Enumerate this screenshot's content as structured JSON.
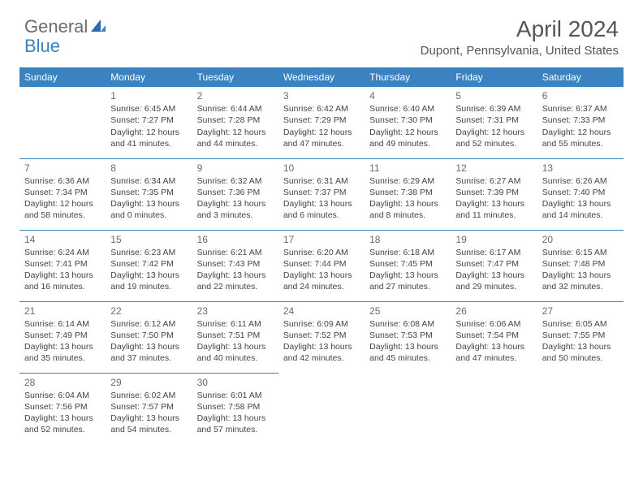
{
  "logo": {
    "general": "General",
    "blue": "Blue"
  },
  "title": "April 2024",
  "location": "Dupont, Pennsylvania, United States",
  "header_bg": "#3b83c0",
  "days_of_week": [
    "Sunday",
    "Monday",
    "Tuesday",
    "Wednesday",
    "Thursday",
    "Friday",
    "Saturday"
  ],
  "weeks": [
    [
      null,
      {
        "n": "1",
        "sr": "Sunrise: 6:45 AM",
        "ss": "Sunset: 7:27 PM",
        "d1": "Daylight: 12 hours",
        "d2": "and 41 minutes."
      },
      {
        "n": "2",
        "sr": "Sunrise: 6:44 AM",
        "ss": "Sunset: 7:28 PM",
        "d1": "Daylight: 12 hours",
        "d2": "and 44 minutes."
      },
      {
        "n": "3",
        "sr": "Sunrise: 6:42 AM",
        "ss": "Sunset: 7:29 PM",
        "d1": "Daylight: 12 hours",
        "d2": "and 47 minutes."
      },
      {
        "n": "4",
        "sr": "Sunrise: 6:40 AM",
        "ss": "Sunset: 7:30 PM",
        "d1": "Daylight: 12 hours",
        "d2": "and 49 minutes."
      },
      {
        "n": "5",
        "sr": "Sunrise: 6:39 AM",
        "ss": "Sunset: 7:31 PM",
        "d1": "Daylight: 12 hours",
        "d2": "and 52 minutes."
      },
      {
        "n": "6",
        "sr": "Sunrise: 6:37 AM",
        "ss": "Sunset: 7:33 PM",
        "d1": "Daylight: 12 hours",
        "d2": "and 55 minutes."
      }
    ],
    [
      {
        "n": "7",
        "sr": "Sunrise: 6:36 AM",
        "ss": "Sunset: 7:34 PM",
        "d1": "Daylight: 12 hours",
        "d2": "and 58 minutes."
      },
      {
        "n": "8",
        "sr": "Sunrise: 6:34 AM",
        "ss": "Sunset: 7:35 PM",
        "d1": "Daylight: 13 hours",
        "d2": "and 0 minutes."
      },
      {
        "n": "9",
        "sr": "Sunrise: 6:32 AM",
        "ss": "Sunset: 7:36 PM",
        "d1": "Daylight: 13 hours",
        "d2": "and 3 minutes."
      },
      {
        "n": "10",
        "sr": "Sunrise: 6:31 AM",
        "ss": "Sunset: 7:37 PM",
        "d1": "Daylight: 13 hours",
        "d2": "and 6 minutes."
      },
      {
        "n": "11",
        "sr": "Sunrise: 6:29 AM",
        "ss": "Sunset: 7:38 PM",
        "d1": "Daylight: 13 hours",
        "d2": "and 8 minutes."
      },
      {
        "n": "12",
        "sr": "Sunrise: 6:27 AM",
        "ss": "Sunset: 7:39 PM",
        "d1": "Daylight: 13 hours",
        "d2": "and 11 minutes."
      },
      {
        "n": "13",
        "sr": "Sunrise: 6:26 AM",
        "ss": "Sunset: 7:40 PM",
        "d1": "Daylight: 13 hours",
        "d2": "and 14 minutes."
      }
    ],
    [
      {
        "n": "14",
        "sr": "Sunrise: 6:24 AM",
        "ss": "Sunset: 7:41 PM",
        "d1": "Daylight: 13 hours",
        "d2": "and 16 minutes."
      },
      {
        "n": "15",
        "sr": "Sunrise: 6:23 AM",
        "ss": "Sunset: 7:42 PM",
        "d1": "Daylight: 13 hours",
        "d2": "and 19 minutes."
      },
      {
        "n": "16",
        "sr": "Sunrise: 6:21 AM",
        "ss": "Sunset: 7:43 PM",
        "d1": "Daylight: 13 hours",
        "d2": "and 22 minutes."
      },
      {
        "n": "17",
        "sr": "Sunrise: 6:20 AM",
        "ss": "Sunset: 7:44 PM",
        "d1": "Daylight: 13 hours",
        "d2": "and 24 minutes."
      },
      {
        "n": "18",
        "sr": "Sunrise: 6:18 AM",
        "ss": "Sunset: 7:45 PM",
        "d1": "Daylight: 13 hours",
        "d2": "and 27 minutes."
      },
      {
        "n": "19",
        "sr": "Sunrise: 6:17 AM",
        "ss": "Sunset: 7:47 PM",
        "d1": "Daylight: 13 hours",
        "d2": "and 29 minutes."
      },
      {
        "n": "20",
        "sr": "Sunrise: 6:15 AM",
        "ss": "Sunset: 7:48 PM",
        "d1": "Daylight: 13 hours",
        "d2": "and 32 minutes."
      }
    ],
    [
      {
        "n": "21",
        "sr": "Sunrise: 6:14 AM",
        "ss": "Sunset: 7:49 PM",
        "d1": "Daylight: 13 hours",
        "d2": "and 35 minutes."
      },
      {
        "n": "22",
        "sr": "Sunrise: 6:12 AM",
        "ss": "Sunset: 7:50 PM",
        "d1": "Daylight: 13 hours",
        "d2": "and 37 minutes."
      },
      {
        "n": "23",
        "sr": "Sunrise: 6:11 AM",
        "ss": "Sunset: 7:51 PM",
        "d1": "Daylight: 13 hours",
        "d2": "and 40 minutes."
      },
      {
        "n": "24",
        "sr": "Sunrise: 6:09 AM",
        "ss": "Sunset: 7:52 PM",
        "d1": "Daylight: 13 hours",
        "d2": "and 42 minutes."
      },
      {
        "n": "25",
        "sr": "Sunrise: 6:08 AM",
        "ss": "Sunset: 7:53 PM",
        "d1": "Daylight: 13 hours",
        "d2": "and 45 minutes."
      },
      {
        "n": "26",
        "sr": "Sunrise: 6:06 AM",
        "ss": "Sunset: 7:54 PM",
        "d1": "Daylight: 13 hours",
        "d2": "and 47 minutes."
      },
      {
        "n": "27",
        "sr": "Sunrise: 6:05 AM",
        "ss": "Sunset: 7:55 PM",
        "d1": "Daylight: 13 hours",
        "d2": "and 50 minutes."
      }
    ],
    [
      {
        "n": "28",
        "sr": "Sunrise: 6:04 AM",
        "ss": "Sunset: 7:56 PM",
        "d1": "Daylight: 13 hours",
        "d2": "and 52 minutes."
      },
      {
        "n": "29",
        "sr": "Sunrise: 6:02 AM",
        "ss": "Sunset: 7:57 PM",
        "d1": "Daylight: 13 hours",
        "d2": "and 54 minutes."
      },
      {
        "n": "30",
        "sr": "Sunrise: 6:01 AM",
        "ss": "Sunset: 7:58 PM",
        "d1": "Daylight: 13 hours",
        "d2": "and 57 minutes."
      },
      null,
      null,
      null,
      null
    ]
  ]
}
